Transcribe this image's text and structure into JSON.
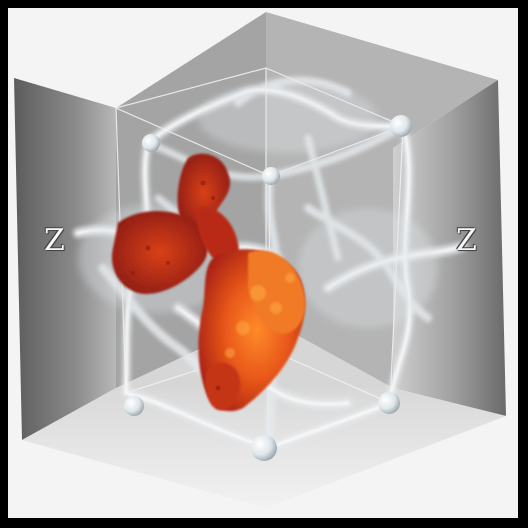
{
  "image": {
    "description_icon": "cube-molecular-cloud",
    "labels": {
      "left_axis": "Z",
      "right_axis": "Z"
    },
    "colors": {
      "background": "#f4f4f4",
      "wall_dark": "#6e6e6e",
      "wall_light": "#c8c8c8",
      "smoke": "#d9dde0",
      "fire_core": "#e8581a",
      "fire_edge": "#b8281a",
      "node": "#dfe6ea"
    }
  }
}
